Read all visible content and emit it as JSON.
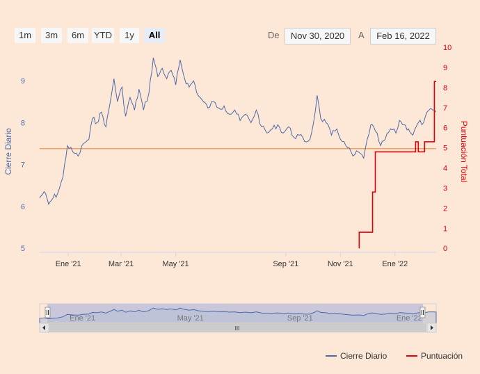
{
  "range_selector": {
    "buttons": [
      {
        "label": "1m",
        "active": false
      },
      {
        "label": "3m",
        "active": false
      },
      {
        "label": "6m",
        "active": false
      },
      {
        "label": "YTD",
        "active": false
      },
      {
        "label": "1y",
        "active": false
      },
      {
        "label": "All",
        "active": true
      }
    ],
    "from_label": "De",
    "from_value": "Nov 30, 2020",
    "to_label": "A",
    "to_value": "Feb 16, 2022"
  },
  "navigator": {
    "x_labels": [
      "Ene '21",
      "May '21",
      "Sep '21",
      "Ene '22"
    ],
    "scroll_grip": "III"
  },
  "legend": {
    "items": [
      {
        "name": "Cierre Diario",
        "color": "#4b68a6"
      },
      {
        "name": "Puntuación",
        "color": "#e0000a"
      }
    ]
  },
  "colors": {
    "background": "#fde8d8",
    "close_line": "#4b68a6",
    "score_line": "#e0000a",
    "reference_line": "#f0a060"
  },
  "chart_data": {
    "type": "line",
    "x_tick_labels": [
      "Ene '21",
      "Mar '21",
      "May '21",
      "Sep '21",
      "Nov '21",
      "Ene '22"
    ],
    "x_tick_dates": [
      "2021-01-01",
      "2021-03-01",
      "2021-05-01",
      "2021-09-01",
      "2021-11-01",
      "2022-01-01"
    ],
    "x_range": [
      "2020-11-30",
      "2022-02-16"
    ],
    "y_left": {
      "label": "Cierre Diario",
      "ticks": [
        5,
        6,
        7,
        8,
        9
      ],
      "range": [
        4.9,
        9.8
      ]
    },
    "y_right": {
      "label": "Puntuación Total",
      "ticks": [
        0,
        1,
        2,
        3,
        4,
        5,
        6,
        7,
        8,
        9,
        10
      ],
      "range": [
        -0.2,
        10
      ]
    },
    "reference_line": {
      "axis": "left",
      "value": 7.38
    },
    "series": [
      {
        "name": "Cierre Diario",
        "axis": "left",
        "points": [
          [
            "2020-11-30",
            6.2
          ],
          [
            "2020-12-05",
            6.35
          ],
          [
            "2020-12-10",
            6.05
          ],
          [
            "2020-12-15",
            6.2
          ],
          [
            "2020-12-20",
            6.3
          ],
          [
            "2020-12-26",
            6.7
          ],
          [
            "2020-12-31",
            7.45
          ],
          [
            "2021-01-06",
            7.3
          ],
          [
            "2021-01-12",
            7.2
          ],
          [
            "2021-01-18",
            7.5
          ],
          [
            "2021-01-24",
            7.6
          ],
          [
            "2021-01-28",
            8.1
          ],
          [
            "2021-02-02",
            8.0
          ],
          [
            "2021-02-07",
            8.25
          ],
          [
            "2021-02-12",
            7.9
          ],
          [
            "2021-02-17",
            8.5
          ],
          [
            "2021-02-21",
            9.05
          ],
          [
            "2021-02-25",
            8.5
          ],
          [
            "2021-03-02",
            8.85
          ],
          [
            "2021-03-06",
            8.15
          ],
          [
            "2021-03-11",
            8.6
          ],
          [
            "2021-03-16",
            8.3
          ],
          [
            "2021-03-21",
            8.8
          ],
          [
            "2021-03-26",
            8.3
          ],
          [
            "2021-04-01",
            8.7
          ],
          [
            "2021-04-06",
            9.55
          ],
          [
            "2021-04-11",
            9.1
          ],
          [
            "2021-04-16",
            9.3
          ],
          [
            "2021-04-21",
            9.05
          ],
          [
            "2021-04-26",
            9.25
          ],
          [
            "2021-05-01",
            8.9
          ],
          [
            "2021-05-06",
            9.5
          ],
          [
            "2021-05-11",
            9.05
          ],
          [
            "2021-05-16",
            8.85
          ],
          [
            "2021-05-21",
            9.0
          ],
          [
            "2021-05-26",
            8.65
          ],
          [
            "2021-06-01",
            8.5
          ],
          [
            "2021-06-06",
            8.35
          ],
          [
            "2021-06-12",
            8.5
          ],
          [
            "2021-06-18",
            8.35
          ],
          [
            "2021-06-24",
            8.4
          ],
          [
            "2021-06-30",
            8.2
          ],
          [
            "2021-07-06",
            8.3
          ],
          [
            "2021-07-12",
            8.05
          ],
          [
            "2021-07-18",
            8.2
          ],
          [
            "2021-07-24",
            8.0
          ],
          [
            "2021-07-30",
            8.3
          ],
          [
            "2021-08-05",
            7.9
          ],
          [
            "2021-08-11",
            7.75
          ],
          [
            "2021-08-17",
            7.85
          ],
          [
            "2021-08-23",
            7.95
          ],
          [
            "2021-08-29",
            7.75
          ],
          [
            "2021-09-04",
            7.9
          ],
          [
            "2021-09-10",
            7.65
          ],
          [
            "2021-09-16",
            7.7
          ],
          [
            "2021-09-22",
            7.55
          ],
          [
            "2021-09-28",
            7.6
          ],
          [
            "2021-10-02",
            8.0
          ],
          [
            "2021-10-06",
            8.65
          ],
          [
            "2021-10-10",
            8.1
          ],
          [
            "2021-10-16",
            8.0
          ],
          [
            "2021-10-22",
            7.7
          ],
          [
            "2021-10-28",
            7.85
          ],
          [
            "2021-11-03",
            7.55
          ],
          [
            "2021-11-09",
            7.4
          ],
          [
            "2021-11-15",
            7.2
          ],
          [
            "2021-11-21",
            7.3
          ],
          [
            "2021-11-27",
            7.15
          ],
          [
            "2021-12-01",
            7.6
          ],
          [
            "2021-12-05",
            7.95
          ],
          [
            "2021-12-10",
            7.8
          ],
          [
            "2021-12-16",
            7.45
          ],
          [
            "2021-12-21",
            7.6
          ],
          [
            "2021-12-27",
            7.85
          ],
          [
            "2022-01-02",
            7.75
          ],
          [
            "2022-01-06",
            8.05
          ],
          [
            "2022-01-11",
            7.95
          ],
          [
            "2022-01-16",
            7.85
          ],
          [
            "2022-01-21",
            7.7
          ],
          [
            "2022-01-27",
            8.0
          ],
          [
            "2022-02-02",
            8.0
          ],
          [
            "2022-02-08",
            8.3
          ],
          [
            "2022-02-12",
            8.3
          ],
          [
            "2022-02-16",
            8.25
          ]
        ]
      },
      {
        "name": "Puntuación",
        "axis": "right",
        "step": true,
        "points": [
          [
            "2021-11-22",
            0
          ],
          [
            "2021-11-22",
            0.8
          ],
          [
            "2021-12-07",
            0.8
          ],
          [
            "2021-12-07",
            2.8
          ],
          [
            "2021-12-10",
            2.8
          ],
          [
            "2021-12-10",
            4.8
          ],
          [
            "2022-01-24",
            4.8
          ],
          [
            "2022-01-24",
            5.3
          ],
          [
            "2022-01-27",
            5.3
          ],
          [
            "2022-01-27",
            4.8
          ],
          [
            "2022-02-03",
            4.8
          ],
          [
            "2022-02-03",
            5.3
          ],
          [
            "2022-02-14",
            5.3
          ],
          [
            "2022-02-14",
            8.3
          ],
          [
            "2022-02-16",
            8.3
          ]
        ]
      }
    ]
  }
}
